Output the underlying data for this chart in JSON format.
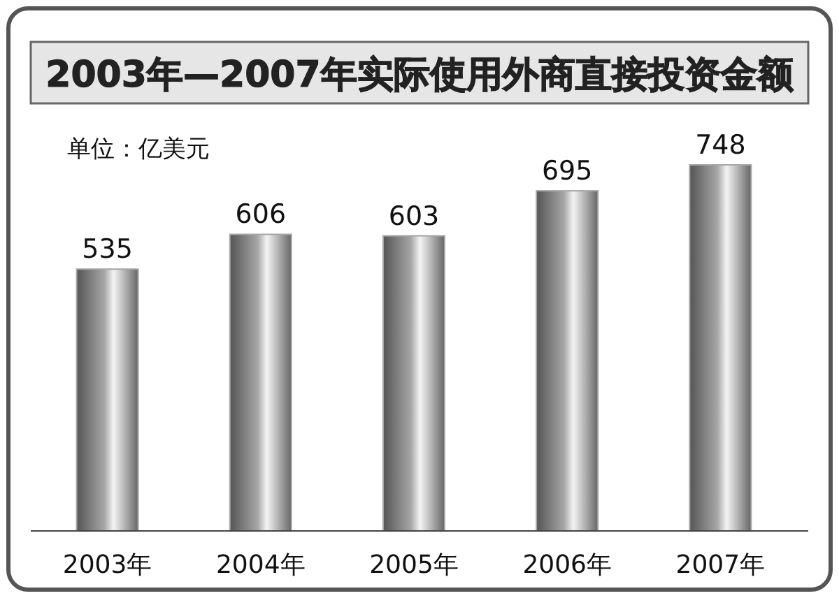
{
  "chart_data": {
    "type": "bar",
    "title": "2003年—2007年实际使用外商直接投资金额",
    "annotations": [
      "单位：亿美元"
    ],
    "categories": [
      "2003年",
      "2004年",
      "2005年",
      "2006年",
      "2007年"
    ],
    "values": [
      535,
      606,
      603,
      695,
      748
    ],
    "color": "#a6a6a6",
    "data_labels": true
  }
}
